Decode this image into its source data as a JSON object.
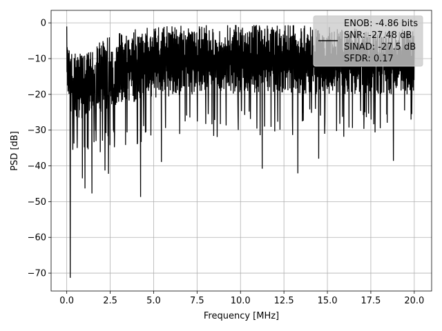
{
  "chart_data": {
    "type": "line",
    "title": "",
    "xlabel": "Frequency [MHz]",
    "ylabel": "PSD [dB]",
    "xlim": [
      -0.9,
      21.0
    ],
    "ylim": [
      -75.0,
      3.5
    ],
    "xticks": [
      0.0,
      2.5,
      5.0,
      7.5,
      10.0,
      12.5,
      15.0,
      17.5,
      20.0
    ],
    "xtick_labels": [
      "0.0",
      "2.5",
      "5.0",
      "7.5",
      "10.0",
      "12.5",
      "15.0",
      "17.5",
      "20.0"
    ],
    "yticks": [
      0,
      -10,
      -20,
      -30,
      -40,
      -50,
      -60,
      -70
    ],
    "ytick_labels": [
      "0",
      "−10",
      "−20",
      "−30",
      "−40",
      "−50",
      "−60",
      "−70"
    ],
    "grid": true,
    "legend_position": "top-right",
    "line_color": "#000000",
    "series": [
      {
        "legend_lines": [
          "ENOB: -4.86 bits",
          "SNR: -27.48 dB",
          "SINAD: -27.5 dB",
          "SFDR: 0.17"
        ],
        "x_range": [
          0.0,
          20.0
        ],
        "envelope": {
          "f": [
            0.0,
            0.25,
            0.5,
            1.0,
            2.0,
            3.0,
            5.0,
            7.5,
            10.0,
            12.5,
            15.0,
            17.5,
            20.0
          ],
          "high": [
            -1.0,
            -8.0,
            -8.5,
            -8.0,
            -5.0,
            -2.5,
            -1.0,
            -0.5,
            -0.5,
            -0.5,
            -0.5,
            -1.5,
            -2.0
          ],
          "low": [
            -18.0,
            -26.0,
            -27.0,
            -27.0,
            -25.0,
            -23.0,
            -21.0,
            -20.0,
            -20.0,
            -20.0,
            -20.0,
            -20.0,
            -20.0
          ]
        },
        "dips": [
          {
            "x": 0.2,
            "y": -71.3
          },
          {
            "x": 0.35,
            "y": -35.5
          },
          {
            "x": 0.6,
            "y": -35.0
          },
          {
            "x": 0.9,
            "y": -43.5
          },
          {
            "x": 1.05,
            "y": -46.3
          },
          {
            "x": 1.45,
            "y": -47.7
          },
          {
            "x": 2.2,
            "y": -41.3
          },
          {
            "x": 2.4,
            "y": -42.2
          },
          {
            "x": 4.25,
            "y": -48.7
          },
          {
            "x": 5.45,
            "y": -38.9
          },
          {
            "x": 11.25,
            "y": -40.8
          },
          {
            "x": 13.3,
            "y": -42.1
          },
          {
            "x": 14.5,
            "y": -38.0
          },
          {
            "x": 18.8,
            "y": -38.6
          }
        ]
      }
    ]
  }
}
